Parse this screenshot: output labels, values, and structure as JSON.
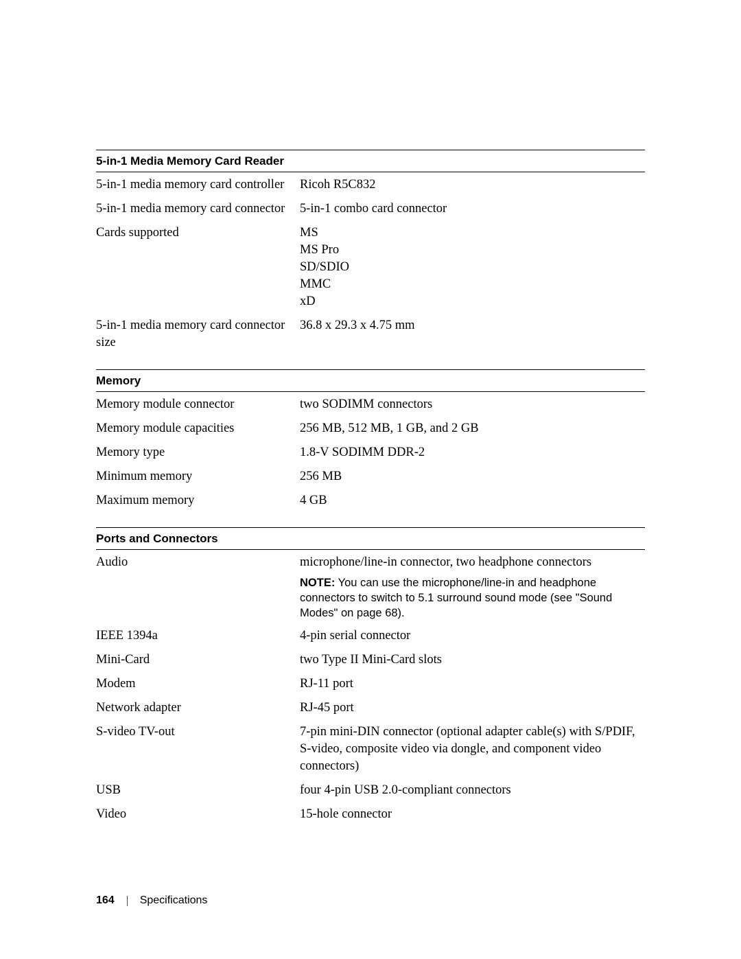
{
  "sections": [
    {
      "title": "5-in-1 Media Memory Card Reader",
      "rows": [
        {
          "label": "5-in-1 media memory card controller",
          "value": "Ricoh R5C832"
        },
        {
          "label": "5-in-1 media memory card connector",
          "value": "5-in-1 combo card connector"
        },
        {
          "label": "Cards supported",
          "lines": [
            "MS",
            "MS Pro",
            "SD/SDIO",
            "MMC",
            "xD"
          ]
        },
        {
          "label": "5-in-1 media memory card connector size",
          "value": "36.8 x 29.3 x 4.75 mm"
        }
      ]
    },
    {
      "title": "Memory",
      "rows": [
        {
          "label": "Memory module connector",
          "value": "two SODIMM connectors"
        },
        {
          "label": "Memory module capacities",
          "value": "256 MB, 512 MB, 1 GB, and 2 GB"
        },
        {
          "label": "Memory type",
          "value": "1.8-V SODIMM DDR-2"
        },
        {
          "label": "Minimum memory",
          "value": "256 MB"
        },
        {
          "label": "Maximum memory",
          "value": "4 GB"
        }
      ]
    },
    {
      "title": "Ports and Connectors",
      "rows": [
        {
          "label": "Audio",
          "value": "microphone/line-in connector, two headphone connectors",
          "note_label": "NOTE:",
          "note": " You can use the microphone/line-in and headphone connectors to switch to 5.1 surround sound mode (see \"Sound Modes\" on page 68)."
        },
        {
          "label": "IEEE 1394a",
          "value": "4-pin serial connector"
        },
        {
          "label": "Mini-Card",
          "value": "two Type II Mini-Card slots"
        },
        {
          "label": "Modem",
          "value": "RJ-11 port"
        },
        {
          "label": "Network adapter",
          "value": "RJ-45 port"
        },
        {
          "label": "S-video TV-out",
          "value": "7-pin mini-DIN connector (optional adapter cable(s) with S/PDIF, S-video, composite video via dongle, and component video connectors)"
        },
        {
          "label": "USB",
          "value": "four 4-pin USB 2.0-compliant connectors"
        },
        {
          "label": "Video",
          "value": "15-hole connector"
        }
      ]
    }
  ],
  "footer": {
    "page": "164",
    "section": "Specifications"
  }
}
